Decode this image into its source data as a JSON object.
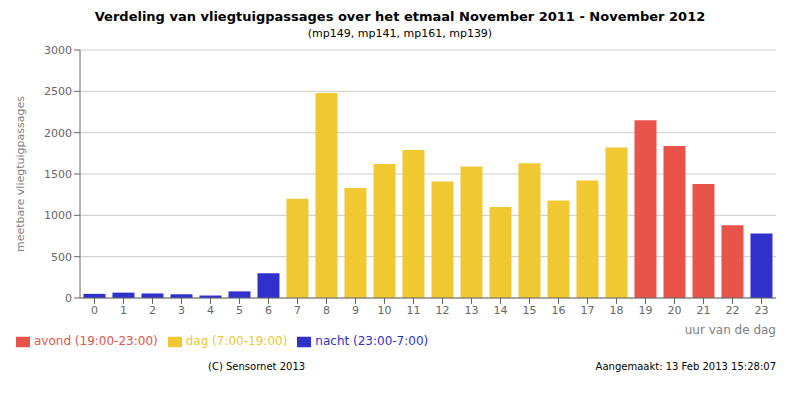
{
  "chart_data": {
    "type": "bar",
    "title": "Verdeling van vliegtuigpassages over het etmaal November 2011 - November 2012",
    "subtitle": "(mp149, mp141, mp161, mp139)",
    "xlabel": "uur van de dag",
    "ylabel": "meetbare vliegtuigpassages",
    "categories": [
      "0",
      "1",
      "2",
      "3",
      "4",
      "5",
      "6",
      "7",
      "8",
      "9",
      "10",
      "11",
      "12",
      "13",
      "14",
      "15",
      "16",
      "17",
      "18",
      "19",
      "20",
      "21",
      "22",
      "23"
    ],
    "series": [
      {
        "name": "avond (19:00-23:00)",
        "color": "#e8534a",
        "values": [
          null,
          null,
          null,
          null,
          null,
          null,
          null,
          null,
          null,
          null,
          null,
          null,
          null,
          null,
          null,
          null,
          null,
          null,
          null,
          2150,
          1840,
          1380,
          880,
          null
        ]
      },
      {
        "name": "dag (7:00-19:00)",
        "color": "#f0c832",
        "values": [
          null,
          null,
          null,
          null,
          null,
          null,
          null,
          1200,
          2480,
          1330,
          1620,
          1790,
          1410,
          1590,
          1100,
          1630,
          1180,
          1420,
          1820,
          null,
          null,
          null,
          null,
          null
        ]
      },
      {
        "name": "nacht (23:00-7:00)",
        "color": "#3030cc",
        "values": [
          50,
          65,
          55,
          45,
          30,
          80,
          300,
          null,
          null,
          null,
          null,
          null,
          null,
          null,
          null,
          null,
          null,
          null,
          null,
          null,
          null,
          null,
          null,
          780
        ]
      }
    ],
    "stacked": true,
    "ylim": [
      0,
      3000
    ],
    "yticks": [
      0,
      500,
      1000,
      1500,
      2000,
      2500,
      3000
    ],
    "grid": true,
    "annotations": [
      "(C) Sensornet 2013",
      "Aangemaakt: 13 Feb 2013 15:28:07"
    ]
  }
}
